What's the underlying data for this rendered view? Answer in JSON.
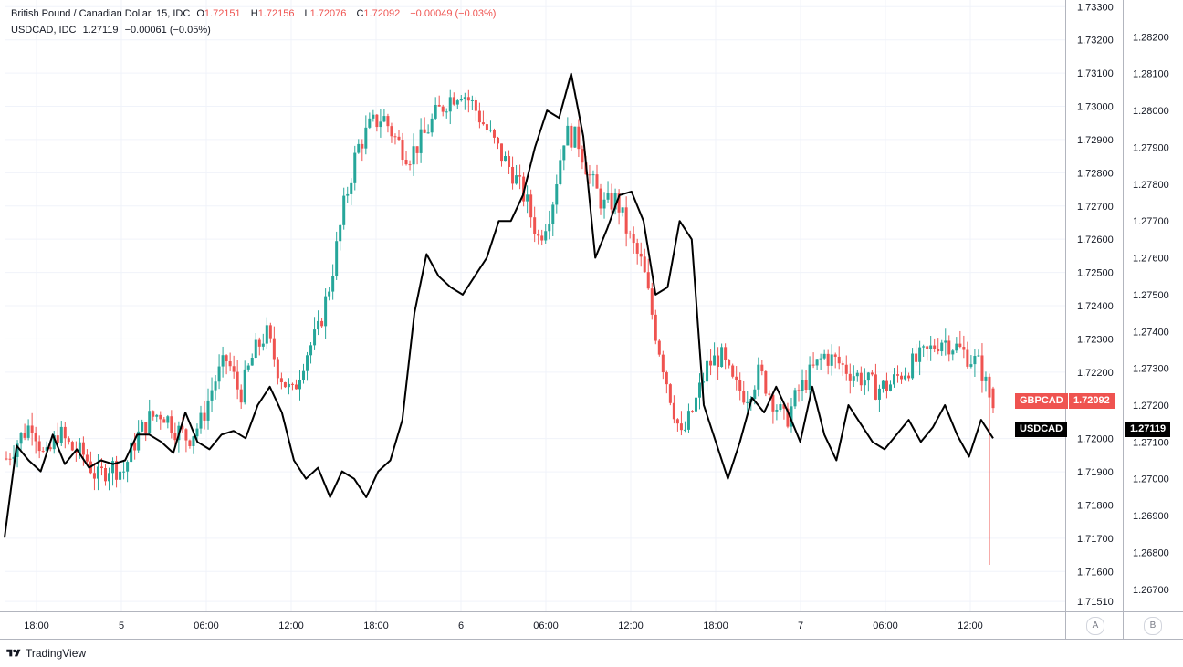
{
  "legend": {
    "gbpcad_name": "British Pound / Canadian Dollar, 15, IDC",
    "o_label": "O",
    "o_value": "1.72151",
    "h_label": "H",
    "h_value": "1.72156",
    "l_label": "L",
    "l_value": "1.72076",
    "c_label": "C",
    "c_value": "1.72092",
    "change": "−0.00049 (−0.03%)",
    "usdcad_name": "USDCAD, IDC",
    "usdcad_value": "1.27119",
    "usdcad_change": "−0.00061 (−0.05%)"
  },
  "axis_buttons": {
    "a": "A",
    "b": "B"
  },
  "brand": "TradingView",
  "tags": {
    "left_gbpcad_label": "GBPCAD",
    "left_usdcad_label": "USDCAD",
    "right_gbpcad_value": "1.72092",
    "right_usdcad_value": "1.27119"
  },
  "colors": {
    "up": "#26a69a",
    "down": "#ef5350",
    "overlay": "#000000",
    "grid": "#f0f3fa"
  },
  "chart_data": {
    "type": "line",
    "x_tick_labels": [
      "18:00",
      "5",
      "06:00",
      "12:00",
      "18:00",
      "6",
      "06:00",
      "12:00",
      "18:00",
      "7",
      "06:00",
      "12:00"
    ],
    "y_axis_a": {
      "ticks": [
        "1.73300",
        "1.73200",
        "1.73100",
        "1.73000",
        "1.72900",
        "1.72800",
        "1.72700",
        "1.72600",
        "1.72500",
        "1.72400",
        "1.72300",
        "1.72200",
        "1.72000",
        "1.71900",
        "1.71800",
        "1.71700",
        "1.71600",
        "1.71510"
      ],
      "range": [
        1.7148,
        1.7332
      ]
    },
    "y_axis_b": {
      "ticks": [
        "1.28200",
        "1.28100",
        "1.28000",
        "1.27900",
        "1.27800",
        "1.27700",
        "1.27600",
        "1.27500",
        "1.27400",
        "1.27300",
        "1.27200",
        "1.27100",
        "1.27000",
        "1.26900",
        "1.26800",
        "1.26700"
      ],
      "range": [
        1.2664,
        1.283
      ]
    },
    "series": [
      {
        "name": "British Pound / Canadian Dollar, 15, IDC",
        "kind": "candlestick",
        "close_path": [
          1.7194,
          1.72,
          1.7205,
          1.7193,
          1.7202,
          1.7197,
          1.7195,
          1.7188,
          1.7192,
          1.719,
          1.72,
          1.7206,
          1.7208,
          1.7203,
          1.72,
          1.7205,
          1.7217,
          1.7224,
          1.7213,
          1.7225,
          1.7232,
          1.722,
          1.7213,
          1.7225,
          1.7232,
          1.7248,
          1.727,
          1.7287,
          1.7294,
          1.7297,
          1.729,
          1.7285,
          1.729,
          1.7297,
          1.7302,
          1.7305,
          1.73,
          1.7293,
          1.7286,
          1.728,
          1.7272,
          1.726,
          1.727,
          1.7292,
          1.729,
          1.7278,
          1.727,
          1.7272,
          1.726,
          1.7252,
          1.7232,
          1.7215,
          1.72,
          1.721,
          1.7222,
          1.7225,
          1.7216,
          1.7213,
          1.722,
          1.7212,
          1.7205,
          1.7214,
          1.722,
          1.7225,
          1.7223,
          1.722,
          1.7218,
          1.7215,
          1.7216,
          1.722,
          1.7223,
          1.7226,
          1.723,
          1.7228,
          1.7225,
          1.7222,
          1.7209
        ],
        "ohlc_last": {
          "open": 1.72151,
          "high": 1.72156,
          "low": 1.72076,
          "close": 1.72092
        },
        "min_low": 1.7162,
        "max_high": 1.7313
      },
      {
        "name": "USDCAD, IDC",
        "kind": "line",
        "values": [
          1.2684,
          1.2709,
          1.2705,
          1.2702,
          1.2712,
          1.2704,
          1.2708,
          1.2703,
          1.2705,
          1.2704,
          1.2705,
          1.2712,
          1.2712,
          1.271,
          1.2707,
          1.2718,
          1.271,
          1.2708,
          1.2712,
          1.2713,
          1.2711,
          1.272,
          1.2725,
          1.2718,
          1.2705,
          1.27,
          1.2703,
          1.2695,
          1.2702,
          1.27,
          1.2695,
          1.2702,
          1.2705,
          1.2716,
          1.2745,
          1.2761,
          1.2755,
          1.2752,
          1.275,
          1.2755,
          1.276,
          1.277,
          1.277,
          1.2777,
          1.279,
          1.28,
          1.2798,
          1.281,
          1.2793,
          1.276,
          1.2768,
          1.2777,
          1.2778,
          1.277,
          1.275,
          1.2752,
          1.277,
          1.2765,
          1.272,
          1.271,
          1.27,
          1.271,
          1.2722,
          1.2718,
          1.2725,
          1.2718,
          1.271,
          1.2725,
          1.2712,
          1.2705,
          1.272,
          1.2715,
          1.271,
          1.2708,
          1.2712,
          1.2716,
          1.271,
          1.2714,
          1.272,
          1.2712,
          1.2706,
          1.2716,
          1.2711
        ],
        "last_value": 1.27119
      }
    ]
  }
}
